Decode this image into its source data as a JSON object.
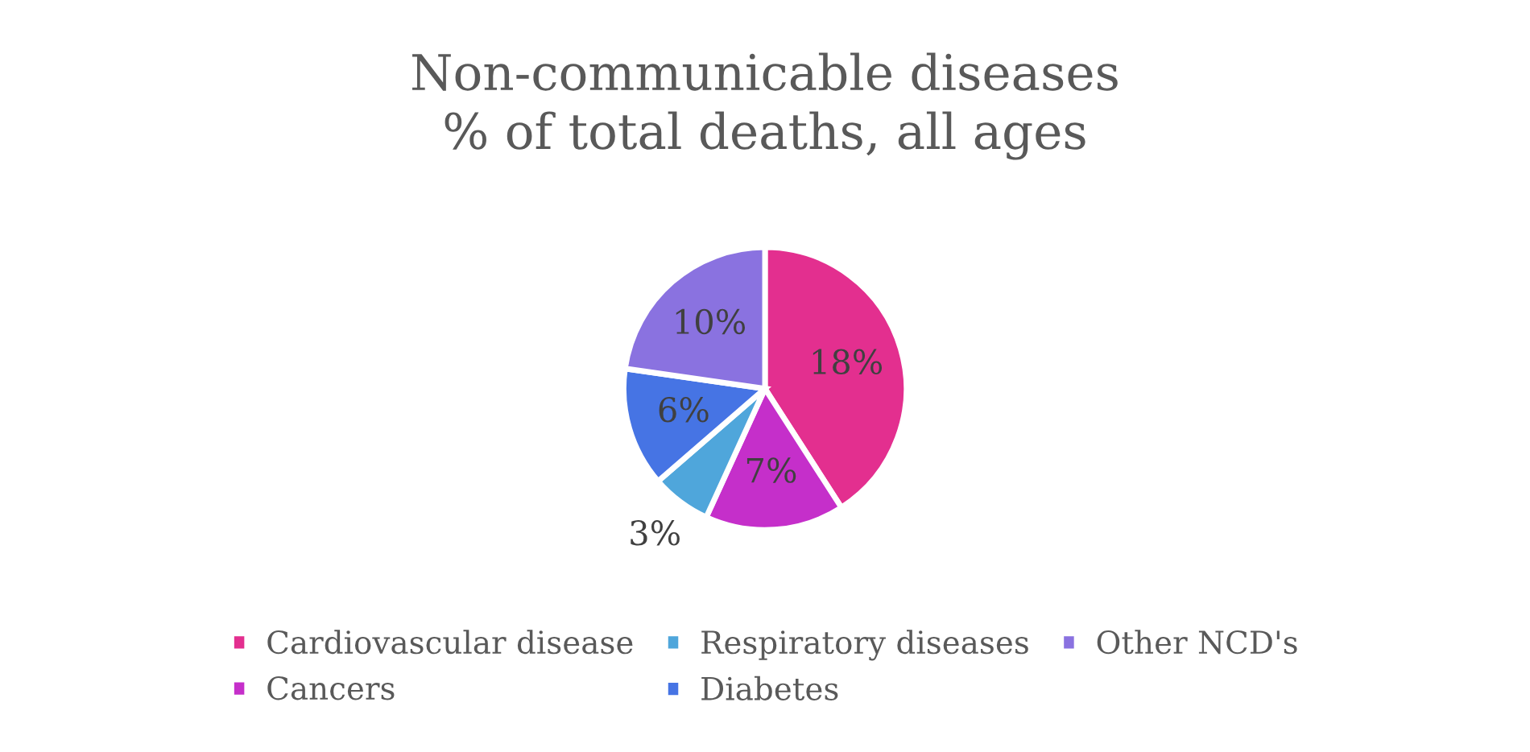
{
  "chart_data": {
    "type": "pie",
    "title": "Non-communicable diseases\n% of total deaths, all ages",
    "categories": [
      "Cardiovascular disease",
      "Cancers",
      "Respiratory diseases",
      "Diabetes",
      "Other NCD's"
    ],
    "values": [
      18,
      7,
      3,
      6,
      10
    ],
    "value_labels": [
      "18%",
      "7%",
      "3%",
      "6%",
      "10%"
    ],
    "colors": [
      "#e32f8f",
      "#c52fca",
      "#4fa6db",
      "#4674e4",
      "#8a72e0"
    ],
    "legend": "bottom"
  }
}
